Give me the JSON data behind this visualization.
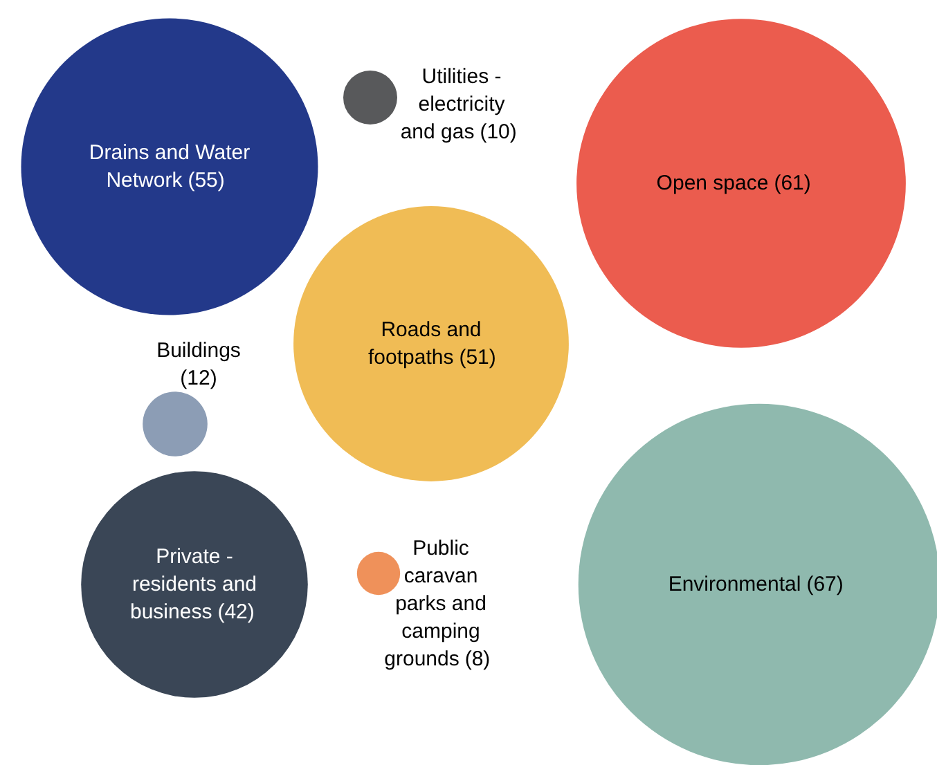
{
  "chart_data": {
    "type": "other",
    "categories": [
      "Drains and Water Network",
      "Utilities - electricity and gas",
      "Open space",
      "Roads and footpaths",
      "Buildings",
      "Private - residents and business",
      "Public caravan parks and camping grounds",
      "Environmental"
    ],
    "values": [
      55,
      10,
      61,
      51,
      12,
      42,
      8,
      67
    ],
    "colors": [
      "#23398a",
      "#58595b",
      "#eb5c4e",
      "#f0bc55",
      "#8c9db5",
      "#3a4656",
      "#ef915a",
      "#8fb9ae"
    ],
    "value_labels": [
      "(55)",
      "(10)",
      "(61)",
      "(51)",
      "(12)",
      "(42)",
      "(8)",
      "(67)"
    ]
  }
}
